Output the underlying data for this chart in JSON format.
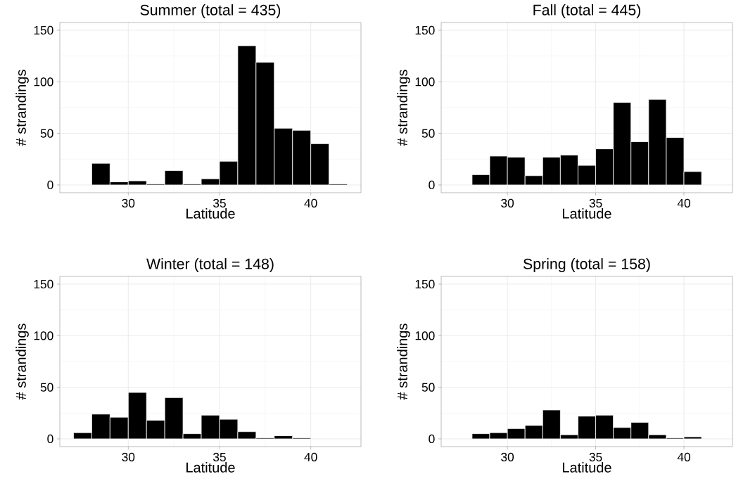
{
  "chart_data": [
    {
      "type": "histogram",
      "title": "Summer (total = 435)",
      "xlabel": "Latitude",
      "ylabel": "# strandings",
      "bins": [
        28,
        29,
        30,
        31,
        32,
        33,
        34,
        35,
        36,
        37,
        38,
        39,
        40,
        41,
        42
      ],
      "values": [
        21,
        3,
        4,
        1,
        14,
        1,
        6,
        23,
        135,
        119,
        55,
        53,
        40,
        1
      ],
      "color": "#000000",
      "xlim": [
        26.25,
        42.75
      ],
      "ylim": [
        -7.5,
        157.5
      ],
      "xticks": [
        30,
        35,
        40
      ],
      "yticks": [
        0,
        50,
        100,
        150
      ],
      "grid": true
    },
    {
      "type": "histogram",
      "title": "Fall (total = 445)",
      "xlabel": "Latitude",
      "ylabel": "# strandings",
      "bins": [
        28,
        29,
        30,
        31,
        32,
        33,
        34,
        35,
        36,
        37,
        38,
        39,
        40,
        41
      ],
      "values": [
        10,
        28,
        27,
        9,
        27,
        29,
        19,
        35,
        80,
        42,
        83,
        46,
        13
      ],
      "color": "#000000",
      "xlim": [
        26.25,
        42.75
      ],
      "ylim": [
        -7.5,
        157.5
      ],
      "xticks": [
        30,
        35,
        40
      ],
      "yticks": [
        0,
        50,
        100,
        150
      ],
      "grid": true
    },
    {
      "type": "histogram",
      "title": "Winter (total = 148)",
      "xlabel": "Latitude",
      "ylabel": "# strandings",
      "bins": [
        27,
        28,
        29,
        30,
        31,
        32,
        33,
        34,
        35,
        36,
        37,
        38,
        39,
        40
      ],
      "values": [
        6,
        24,
        21,
        45,
        18,
        40,
        5,
        23,
        19,
        7,
        1,
        3,
        1
      ],
      "color": "#000000",
      "xlim": [
        26.25,
        42.75
      ],
      "ylim": [
        -7.5,
        157.5
      ],
      "xticks": [
        30,
        35,
        40
      ],
      "yticks": [
        0,
        50,
        100,
        150
      ],
      "grid": true
    },
    {
      "type": "histogram",
      "title": "Spring (total = 158)",
      "xlabel": "Latitude",
      "ylabel": "# strandings",
      "bins": [
        28,
        29,
        30,
        31,
        32,
        33,
        34,
        35,
        36,
        37,
        38,
        39,
        40,
        41
      ],
      "values": [
        5,
        6,
        10,
        13,
        28,
        4,
        22,
        23,
        11,
        16,
        4,
        1,
        2
      ],
      "color": "#000000",
      "xlim": [
        26.25,
        42.75
      ],
      "ylim": [
        -7.5,
        157.5
      ],
      "xticks": [
        30,
        35,
        40
      ],
      "yticks": [
        0,
        50,
        100,
        150
      ],
      "grid": true
    }
  ]
}
